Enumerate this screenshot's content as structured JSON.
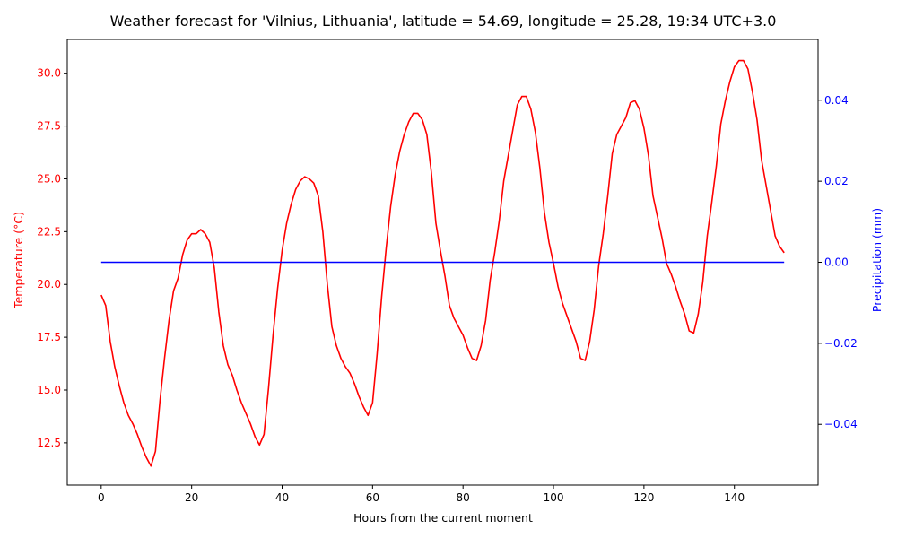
{
  "chart_data": {
    "type": "line",
    "title": "Weather forecast for 'Vilnius, Lithuania', latitude = 54.69, longitude = 25.28, 19:34 UTC+3.0",
    "xlabel": "Hours from the current moment",
    "xlim": [
      -7.5,
      158.5
    ],
    "xticks": [
      0,
      20,
      40,
      60,
      80,
      100,
      120,
      140
    ],
    "grid": false,
    "legend": "none",
    "y_left": {
      "label": "Temperature (°C)",
      "color": "#ff0000",
      "ylim": [
        10.5,
        31.6
      ],
      "ticks": [
        "12.5",
        "15.0",
        "17.5",
        "20.0",
        "22.5",
        "25.0",
        "27.5",
        "30.0"
      ]
    },
    "y_right": {
      "label": "Precipitation (mm)",
      "color": "#0000ff",
      "ylim": [
        -0.055,
        0.055
      ],
      "ticks": [
        "−0.04",
        "−0.02",
        "0.00",
        "0.02",
        "0.04"
      ]
    },
    "series": [
      {
        "axis": "left",
        "color": "#ff0000",
        "x_start": 0,
        "x_step": 1,
        "values": [
          19.5,
          19.0,
          17.3,
          16.1,
          15.2,
          14.4,
          13.8,
          13.4,
          12.9,
          12.3,
          11.8,
          11.4,
          12.1,
          14.5,
          16.5,
          18.3,
          19.7,
          20.3,
          21.4,
          22.1,
          22.4,
          22.4,
          22.6,
          22.4,
          22.0,
          20.8,
          18.7,
          17.1,
          16.2,
          15.7,
          15.0,
          14.4,
          13.9,
          13.4,
          12.8,
          12.4,
          12.9,
          15.1,
          17.6,
          19.8,
          21.6,
          22.9,
          23.8,
          24.5,
          24.9,
          25.1,
          25.0,
          24.8,
          24.2,
          22.5,
          20.0,
          18.0,
          17.1,
          16.5,
          16.1,
          15.8,
          15.3,
          14.7,
          14.2,
          13.8,
          14.4,
          16.7,
          19.4,
          21.7,
          23.7,
          25.2,
          26.3,
          27.1,
          27.7,
          28.1,
          28.1,
          27.8,
          27.1,
          25.3,
          22.9,
          21.6,
          20.4,
          19.0,
          18.4,
          18.0,
          17.6,
          17.0,
          16.5,
          16.4,
          17.1,
          18.3,
          20.2,
          21.5,
          23.0,
          24.9,
          26.1,
          27.3,
          28.5,
          28.9,
          28.9,
          28.3,
          27.2,
          25.5,
          23.4,
          22.0,
          21.0,
          19.9,
          19.1,
          18.5,
          17.9,
          17.3,
          16.5,
          16.4,
          17.3,
          18.8,
          20.9,
          22.4,
          24.2,
          26.2,
          27.1,
          27.5,
          27.9,
          28.6,
          28.7,
          28.3,
          27.4,
          26.1,
          24.2,
          23.2,
          22.2,
          21.0,
          20.5,
          19.9,
          19.2,
          18.6,
          17.8,
          17.7,
          18.6,
          20.1,
          22.3,
          23.9,
          25.6,
          27.6,
          28.7,
          29.6,
          30.3,
          30.6,
          30.6,
          30.2,
          29.1,
          27.8,
          25.9,
          24.7,
          23.5,
          22.3,
          21.8,
          21.5
        ]
      },
      {
        "axis": "right",
        "color": "#0000ff",
        "x_start": 0,
        "x_step": 1,
        "count": 152,
        "constant_value": 0.0
      }
    ]
  }
}
